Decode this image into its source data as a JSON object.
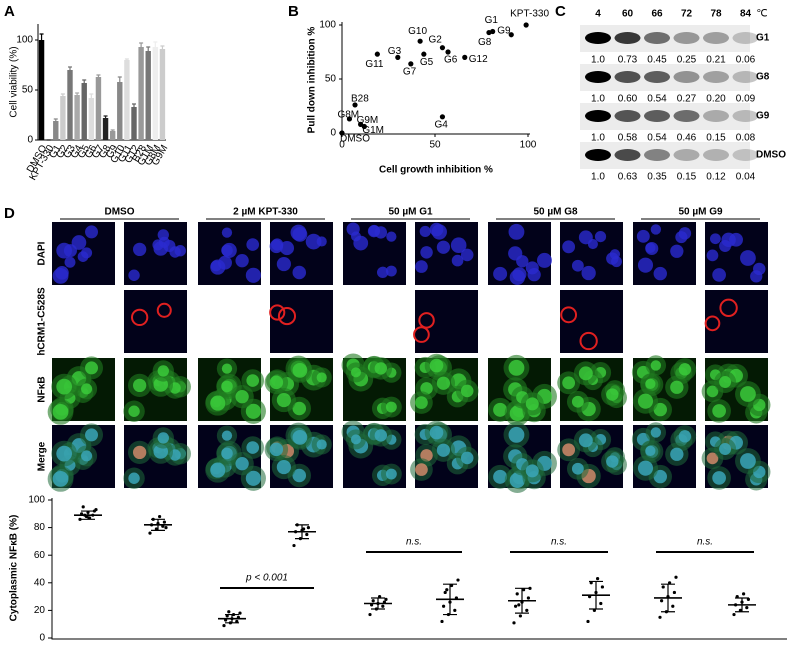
{
  "chart_data": [
    {
      "type": "bar",
      "panel": "A",
      "ylabel": "Cell viability (%)",
      "categories": [
        "DMSO",
        "KPT-330",
        "G1",
        "G2",
        "G3",
        "G4",
        "G5",
        "G6",
        "G7",
        "G8",
        "G9",
        "G10",
        "G11",
        "G12",
        "B28",
        "G1M",
        "G8M",
        "G9M"
      ],
      "values": [
        100,
        0,
        19,
        44,
        70,
        45,
        57,
        42,
        63,
        22,
        9,
        58,
        80,
        33,
        93,
        89,
        93,
        91
      ],
      "errors": [
        6,
        0,
        2,
        2,
        3,
        2,
        3,
        4,
        2,
        2,
        1,
        5,
        1,
        3,
        4,
        4,
        5,
        3
      ],
      "colors": [
        "#000000",
        "#000000",
        "#888888",
        "#cccccc",
        "#777777",
        "#aaaaaa",
        "#666666",
        "#dddddd",
        "#999999",
        "#222222",
        "#999999",
        "#888888",
        "#dddddd",
        "#666666",
        "#999999",
        "#777777",
        "#eeeeee",
        "#cccccc"
      ],
      "ylim": [
        0,
        110
      ],
      "yticks": [
        0,
        50,
        100
      ]
    },
    {
      "type": "scatter",
      "panel": "B",
      "xlabel": "Cell growth inhibition %",
      "ylabel": "Pull down inhibition %",
      "labels": [
        "KPT-330",
        "G1",
        "G8",
        "G9",
        "G10",
        "G2",
        "G6",
        "G12",
        "G3",
        "G11",
        "G5",
        "G7",
        "B28",
        "G8M",
        "G9M",
        "G1M",
        "G4",
        "DMSO"
      ],
      "x": [
        99,
        81,
        79,
        91,
        42,
        54,
        57,
        66,
        30,
        19,
        44,
        37,
        7,
        4,
        10,
        12,
        54,
        0
      ],
      "y": [
        100,
        94,
        93,
        91,
        85,
        79,
        75,
        70,
        70,
        73,
        73,
        64,
        26,
        13,
        8,
        6,
        15,
        0
      ],
      "color": "#000000",
      "xlim": [
        0,
        100
      ],
      "ylim": [
        0,
        100
      ],
      "xticks": [
        0,
        50,
        100
      ],
      "yticks": [
        0,
        50,
        100
      ]
    },
    {
      "type": "dot",
      "ylabel": "Cytoplasmic NFκB (%)",
      "ylim": [
        0,
        100
      ],
      "yticks": [
        0,
        20,
        40,
        60,
        80,
        100
      ],
      "groups": [
        {
          "mean": 89,
          "sd": 3,
          "points": [
            86,
            88,
            89,
            90,
            91,
            92,
            95,
            87,
            93,
            89
          ]
        },
        {
          "mean": 82,
          "sd": 4,
          "points": [
            76,
            79,
            81,
            82,
            83,
            84,
            86,
            88,
            80
          ]
        },
        {
          "mean": 14,
          "sd": 3,
          "points": [
            9,
            11,
            12,
            13,
            14,
            15,
            16,
            17,
            18,
            19
          ]
        },
        {
          "mean": 77,
          "sd": 5,
          "points": [
            67,
            72,
            75,
            77,
            78,
            80,
            82,
            79
          ]
        },
        {
          "mean": 25,
          "sd": 4,
          "points": [
            17,
            21,
            23,
            24,
            25,
            26,
            27,
            30,
            28
          ]
        },
        {
          "mean": 28,
          "sd": 11,
          "points": [
            12,
            17,
            20,
            23,
            26,
            29,
            33,
            38,
            42,
            35
          ]
        },
        {
          "mean": 27,
          "sd": 9,
          "points": [
            11,
            16,
            20,
            23,
            26,
            29,
            32,
            35,
            36,
            24
          ]
        },
        {
          "mean": 31,
          "sd": 10,
          "points": [
            12,
            20,
            25,
            30,
            33,
            37,
            40,
            43
          ]
        },
        {
          "mean": 29,
          "sd": 10,
          "points": [
            15,
            19,
            23,
            27,
            30,
            33,
            37,
            40,
            44
          ]
        },
        {
          "mean": 24,
          "sd": 5,
          "points": [
            17,
            20,
            22,
            24,
            26,
            28,
            30,
            32
          ]
        }
      ],
      "annotations": [
        "p < 0.001",
        "n.s.",
        "n.s.",
        "n.s."
      ]
    }
  ],
  "blot": {
    "panel": "C",
    "unit": "℃",
    "temperatures": [
      4,
      60,
      66,
      72,
      78,
      84
    ],
    "rows": [
      {
        "name": "G1",
        "values": [
          "1.0",
          "0.73",
          "0.45",
          "0.25",
          "0.21",
          "0.06"
        ]
      },
      {
        "name": "G8",
        "values": [
          "1.0",
          "0.60",
          "0.54",
          "0.27",
          "0.20",
          "0.09"
        ]
      },
      {
        "name": "G9",
        "values": [
          "1.0",
          "0.58",
          "0.54",
          "0.46",
          "0.15",
          "0.08"
        ]
      },
      {
        "name": "DMSO",
        "values": [
          "1.0",
          "0.63",
          "0.35",
          "0.15",
          "0.12",
          "0.04"
        ]
      }
    ]
  },
  "imaging": {
    "panel": "D",
    "columns": [
      "DMSO",
      "2 µM KPT-330",
      "50 µM G1",
      "50 µM G8",
      "50 µM G9"
    ],
    "rows": [
      "DAPI",
      "hCRM1-C528S",
      "NFκB",
      "Merge"
    ]
  }
}
